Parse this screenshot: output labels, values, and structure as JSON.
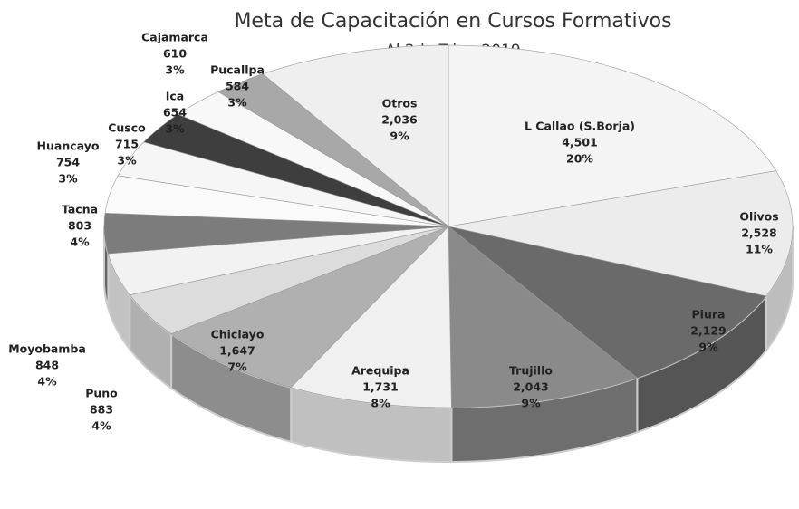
{
  "chart_data": {
    "type": "pie",
    "title": "Meta de Capacitación en Cursos Formativos",
    "subtitle": "Al 2do Trim. 2019",
    "categories": [
      "L Callao (S.Borja)",
      "Olivos",
      "Piura",
      "Trujillo",
      "Arequipa",
      "Chiclayo",
      "Puno",
      "Moyobamba",
      "Tacna",
      "Huancayo",
      "Cusco",
      "Ica",
      "Cajamarca",
      "Pucallpa",
      "Otros"
    ],
    "values": [
      4501,
      2528,
      2129,
      2043,
      1731,
      1647,
      883,
      848,
      803,
      754,
      715,
      654,
      610,
      584,
      2036
    ],
    "value_labels": [
      "4,501",
      "2,528",
      "2,129",
      "2,043",
      "1,731",
      "1,647",
      "883",
      "848",
      "803",
      "754",
      "715",
      "654",
      "610",
      "584",
      "2,036"
    ],
    "percent_labels": [
      "20%",
      "11%",
      "9%",
      "9%",
      "8%",
      "7%",
      "4%",
      "4%",
      "4%",
      "3%",
      "3%",
      "3%",
      "3%",
      "3%",
      "9%"
    ],
    "colors": [
      "#f4f4f4",
      "#ececec",
      "#6a6a6a",
      "#8a8a8a",
      "#f0f0f0",
      "#b0b0b0",
      "#dcdcdc",
      "#f2f2f2",
      "#7c7c7c",
      "#fafafa",
      "#f6f6f6",
      "#3e3e3e",
      "#f8f8f8",
      "#a8a8a8",
      "#efefef"
    ]
  }
}
